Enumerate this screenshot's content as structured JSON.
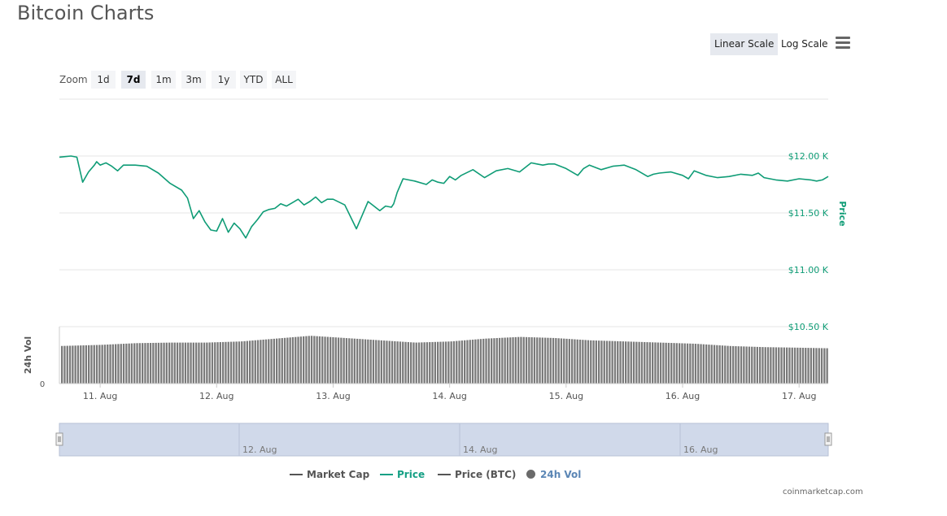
{
  "page": {
    "title": "Bitcoin Charts",
    "credit": "coinmarketcap.com"
  },
  "scale": {
    "linear_label": "Linear Scale",
    "log_label": "Log Scale",
    "active": "linear"
  },
  "zoom": {
    "label": "Zoom",
    "options": [
      "1d",
      "7d",
      "1m",
      "3m",
      "1y",
      "YTD",
      "ALL"
    ],
    "active": "7d"
  },
  "legend": [
    {
      "label": "Market Cap",
      "color": "#555555",
      "style": "line"
    },
    {
      "label": "Price",
      "color": "#16a085",
      "style": "line"
    },
    {
      "label": "Price (BTC)",
      "color": "#555555",
      "style": "line"
    },
    {
      "label": "24h Vol",
      "color": "#6a6a6a",
      "style": "dot",
      "label_color": "#5b86b5"
    }
  ],
  "colors": {
    "price": "#0f9c76",
    "volume": "#7a7a7a",
    "navigator_fill": "#d0d9ea",
    "grid": "#e6e6e6"
  },
  "chart_data": {
    "type": "line",
    "price_axis": {
      "title": "Price",
      "ticks": [
        "$12.00 K",
        "$11.50 K",
        "$11.00 K",
        "$10.50 K"
      ],
      "tick_values": [
        12000,
        11500,
        11000,
        10500
      ],
      "range": [
        10500,
        12500
      ]
    },
    "volume_axis": {
      "title": "24h Vol",
      "ticks": [
        "0"
      ]
    },
    "x_ticks": [
      "11. Aug",
      "12. Aug",
      "13. Aug",
      "14. Aug",
      "15. Aug",
      "16. Aug",
      "17. Aug"
    ],
    "navigator_ticks": [
      "12. Aug",
      "14. Aug",
      "16. Aug"
    ],
    "series": [
      {
        "name": "Price",
        "x": [
          10.65,
          10.7,
          10.75,
          10.8,
          10.85,
          10.9,
          10.95,
          10.97,
          11.0,
          11.05,
          11.1,
          11.15,
          11.2,
          11.3,
          11.4,
          11.5,
          11.6,
          11.7,
          11.75,
          11.8,
          11.85,
          11.9,
          11.95,
          12.0,
          12.05,
          12.1,
          12.15,
          12.2,
          12.25,
          12.3,
          12.35,
          12.4,
          12.45,
          12.5,
          12.55,
          12.6,
          12.65,
          12.7,
          12.75,
          12.8,
          12.85,
          12.9,
          12.95,
          13.0,
          13.1,
          13.2,
          13.3,
          13.4,
          13.45,
          13.5,
          13.52,
          13.55,
          13.6,
          13.7,
          13.8,
          13.85,
          13.9,
          13.95,
          14.0,
          14.05,
          14.1,
          14.2,
          14.3,
          14.4,
          14.5,
          14.6,
          14.7,
          14.75,
          14.8,
          14.85,
          14.9,
          15.0,
          15.1,
          15.15,
          15.2,
          15.3,
          15.4,
          15.5,
          15.6,
          15.7,
          15.75,
          15.8,
          15.9,
          16.0,
          16.05,
          16.1,
          16.2,
          16.3,
          16.4,
          16.5,
          16.6,
          16.65,
          16.7,
          16.8,
          16.9,
          17.0,
          17.1,
          17.15,
          17.2,
          17.25
        ],
        "y": [
          11990,
          11995,
          12000,
          11990,
          11770,
          11860,
          11920,
          11950,
          11920,
          11940,
          11910,
          11870,
          11920,
          11920,
          11910,
          11850,
          11760,
          11700,
          11630,
          11450,
          11520,
          11420,
          11350,
          11340,
          11450,
          11330,
          11410,
          11360,
          11280,
          11380,
          11440,
          11510,
          11530,
          11540,
          11580,
          11560,
          11590,
          11620,
          11570,
          11600,
          11640,
          11590,
          11620,
          11620,
          11570,
          11360,
          11600,
          11520,
          11560,
          11550,
          11580,
          11680,
          11800,
          11780,
          11750,
          11790,
          11770,
          11760,
          11820,
          11790,
          11830,
          11880,
          11810,
          11870,
          11890,
          11860,
          11940,
          11930,
          11920,
          11930,
          11930,
          11890,
          11830,
          11890,
          11920,
          11880,
          11910,
          11920,
          11880,
          11820,
          11840,
          11850,
          11860,
          11830,
          11800,
          11870,
          11830,
          11810,
          11820,
          11840,
          11830,
          11850,
          11810,
          11790,
          11780,
          11800,
          11790,
          11780,
          11790,
          11820
        ]
      },
      {
        "name": "24h Vol",
        "x": [
          10.65,
          11.0,
          11.3,
          11.6,
          11.9,
          12.2,
          12.5,
          12.8,
          13.1,
          13.4,
          13.7,
          14.0,
          14.3,
          14.6,
          14.9,
          15.2,
          15.5,
          15.8,
          16.1,
          16.4,
          16.7,
          17.0,
          17.25
        ],
        "values": [
          0.66,
          0.68,
          0.71,
          0.72,
          0.72,
          0.74,
          0.79,
          0.84,
          0.8,
          0.76,
          0.72,
          0.74,
          0.79,
          0.82,
          0.8,
          0.76,
          0.74,
          0.72,
          0.7,
          0.66,
          0.64,
          0.63,
          0.62
        ]
      }
    ]
  }
}
